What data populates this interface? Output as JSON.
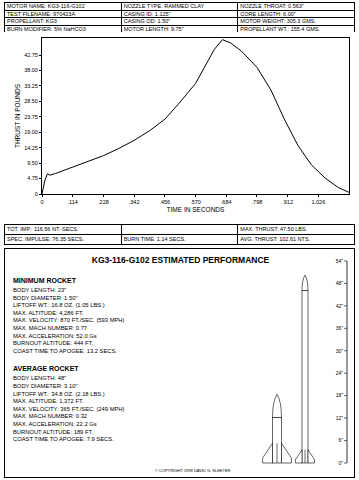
{
  "header": {
    "rows": [
      [
        "MOTOR NAME: KG3-116-G102",
        "NOZZLE TYPE: RAMMED CLAY",
        "NOZZLE THROAT: 0.563\""
      ],
      [
        "TEST FILENAME: 970423A",
        "CASING ID: 1.125\"",
        "CORE LENGTH: 6.00\""
      ],
      [
        "PROPELLANT: KG3",
        "CASING OD: 1.50\"",
        "MOTOR WEIGHT: 305.3 GMS."
      ],
      [
        "BURN MODIFIER: 5% NaHCO3",
        "MOTOR LENGTH: 9.75\"",
        "PROPELLANT WT.: 155.4 GMS."
      ]
    ]
  },
  "chart_data": {
    "type": "line",
    "xlabel": "TIME IN SECONDS",
    "ylabel": "THRUST IN POUNDS",
    "x": [
      0,
      0.01,
      0.02,
      0.03,
      0.05,
      0.08,
      0.114,
      0.17,
      0.228,
      0.285,
      0.342,
      0.4,
      0.456,
      0.51,
      0.57,
      0.61,
      0.64,
      0.67,
      0.7,
      0.74,
      0.798,
      0.85,
      0.9,
      0.95,
      1.0,
      1.05,
      1.1,
      1.14
    ],
    "values": [
      0,
      4,
      6.2,
      5.8,
      6.3,
      7.2,
      8.3,
      10,
      11.8,
      14,
      16.5,
      19.5,
      23,
      28,
      34,
      40,
      44.5,
      47.5,
      46.5,
      44,
      39,
      32,
      23,
      15,
      9,
      5,
      2,
      0.5
    ],
    "color": "#000000",
    "xlim": [
      0,
      1.14
    ],
    "ylim": [
      0,
      48
    ],
    "xticks": [
      0,
      {
        "value": 0.114,
        "label": ".114"
      },
      {
        "value": 0.228,
        "label": ".228"
      },
      {
        "value": 0.342,
        "label": ".342"
      },
      {
        "value": 0.456,
        "label": ".456"
      },
      {
        "value": 0.57,
        "label": ".570"
      },
      {
        "value": 0.684,
        "label": ".684"
      },
      {
        "value": 0.798,
        "label": ".798"
      },
      {
        "value": 0.912,
        "label": ".912"
      },
      1.026
    ],
    "yticks": [
      0,
      4.75,
      {
        "value": 9.5,
        "label": "9.50"
      },
      14.25,
      {
        "value": 19,
        "label": "19.00"
      },
      23.75,
      {
        "value": 28.5,
        "label": "28.50"
      },
      33.25,
      {
        "value": 38,
        "label": "38.00"
      },
      42.75
    ],
    "grid": false
  },
  "summary": {
    "rows": [
      {
        "left": "TOT. IMP.: 116.56 NT.-SECS.",
        "right": "MAX. THRUST: 47.50 LBS."
      },
      {
        "left": "SPEC. IMPULSE: 76.35 SECS.",
        "middle": "BURN TIME: 1.14 SECS.",
        "right": "AVG. THRUST: 102.61 NTS."
      }
    ]
  },
  "performance": {
    "title": "KG3-116-G102 ESTIMATED PERFORMANCE",
    "sections": [
      {
        "heading": "MINIMUM ROCKET",
        "lines": [
          "BODY LENGTH: 23\"",
          "BODY DIAMETER: 1.50\"",
          "LIFTOFF WT.: 16.8 OZ. (1.05 LBS.)",
          "MAX. ALTITUDE: 4,286 FT.",
          "MAX. VELOCITY: 870 FT./SEC. (593 MPH)",
          "MAX. MACH NUMBER: 0.77",
          "MAX. ACCELERATION: 52.0 Gs",
          "BURNOUT ALTITUDE: 444 FT.",
          "COAST TIME TO APOGEE: 13.2 SECS."
        ]
      },
      {
        "heading": "AVERAGE ROCKET",
        "lines": [
          "BODY LENGTH: 48\"",
          "BODY DIAMETER: 3.10\"",
          "LIFTOFF WT.: 34.8 OZ. (2.18 LBS.)",
          "MAX. ALTITUDE: 1,372 FT.",
          "MAX. VELOCITY: 365 FT./SEC. (249 MPH)",
          "MAX. MACH NUMBER: 0.32",
          "MAX. ACCELERATION: 22.2 Gs",
          "BURNOUT ALTITUDE: 189 FT.",
          "COAST TIME TO APOGEE: 7.9 SECS."
        ]
      }
    ],
    "ruler": {
      "range": [
        0,
        54
      ],
      "ticks": [
        {
          "value": 0,
          "label": "0\""
        },
        {
          "value": 6,
          "label": "6\""
        },
        {
          "value": 12,
          "label": "12\""
        },
        {
          "value": 18,
          "label": "18\""
        },
        {
          "value": 24,
          "label": "24\""
        },
        {
          "value": 30,
          "label": "30\""
        },
        {
          "value": 36,
          "label": "36\""
        },
        {
          "value": 42,
          "label": "42\""
        },
        {
          "value": 48,
          "label": "48\""
        },
        {
          "value": 54,
          "label": "54\""
        }
      ]
    },
    "copyright": "© COPYRIGHT 1998 DAVID G. SLEETER"
  }
}
